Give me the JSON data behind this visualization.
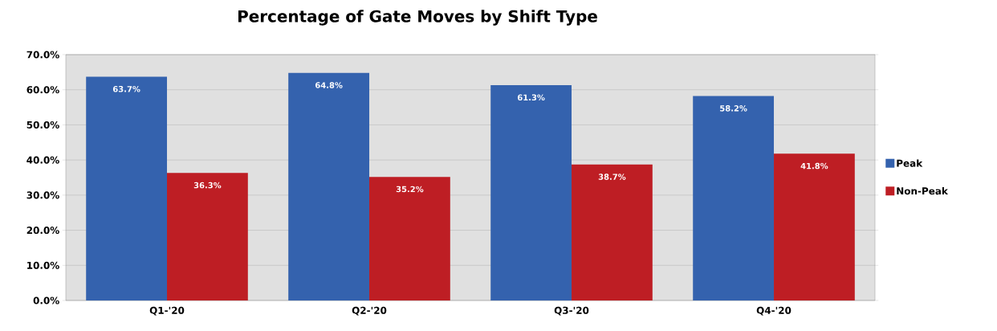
{
  "chart_data": {
    "type": "bar",
    "title": "Percentage of Gate Moves by Shift Type",
    "categories": [
      "Q1-'20",
      "Q2-'20",
      "Q3-'20",
      "Q4-'20"
    ],
    "series": [
      {
        "name": "Peak",
        "color": "#3462ae",
        "values": [
          63.7,
          64.8,
          61.3,
          58.2
        ],
        "value_labels": [
          "63.7%",
          "64.8%",
          "61.3%",
          "58.2%"
        ]
      },
      {
        "name": "Non-Peak",
        "color": "#be1e24",
        "values": [
          36.3,
          35.2,
          38.7,
          41.8
        ],
        "value_labels": [
          "36.3%",
          "35.2%",
          "38.7%",
          "41.8%"
        ]
      }
    ],
    "ylim": [
      0,
      70
    ],
    "yticks": [
      {
        "value": 0,
        "label": "0.0%"
      },
      {
        "value": 10,
        "label": "10.0%"
      },
      {
        "value": 20,
        "label": "20.0%"
      },
      {
        "value": 30,
        "label": "30.0%"
      },
      {
        "value": 40,
        "label": "40.0%"
      },
      {
        "value": 50,
        "label": "50.0%"
      },
      {
        "value": 60,
        "label": "60.0%"
      },
      {
        "value": 70,
        "label": "70.0%"
      }
    ],
    "grid": "y",
    "legend": "right"
  }
}
